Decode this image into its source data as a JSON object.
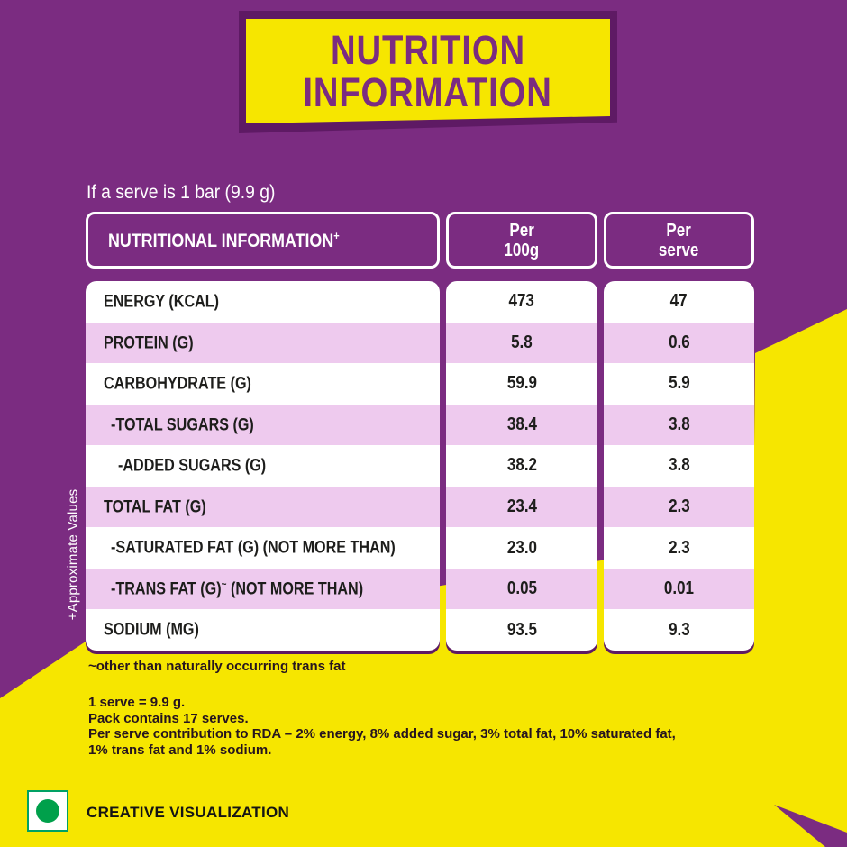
{
  "banner": {
    "line1": "NUTRITION",
    "line2": "INFORMATION"
  },
  "intro": "If a serve is 1 bar (9.9 g)",
  "table": {
    "header": {
      "title": "NUTRITIONAL INFORMATION",
      "title_sup": "+",
      "col1_line1": "Per",
      "col1_line2": "100g",
      "col2_line1": "Per",
      "col2_line2": "serve"
    },
    "rows": [
      {
        "label": "ENERGY (KCAL)",
        "sup": "",
        "suffix": "",
        "per100g": "473",
        "per_serve": "47"
      },
      {
        "label": "PROTEIN (G)",
        "sup": "",
        "suffix": "",
        "per100g": "5.8",
        "per_serve": "0.6"
      },
      {
        "label": "CARBOHYDRATE (G)",
        "sup": "",
        "suffix": "",
        "per100g": "59.9",
        "per_serve": "5.9"
      },
      {
        "label": "-TOTAL SUGARS (G)",
        "sup": "",
        "suffix": "",
        "per100g": "38.4",
        "per_serve": "3.8"
      },
      {
        "label": "-ADDED SUGARS (G)",
        "sup": "",
        "suffix": "",
        "per100g": "38.2",
        "per_serve": "3.8"
      },
      {
        "label": "TOTAL FAT (G)",
        "sup": "",
        "suffix": "",
        "per100g": "23.4",
        "per_serve": "2.3"
      },
      {
        "label": "-SATURATED FAT (G) (NOT MORE THAN)",
        "sup": "",
        "suffix": "",
        "per100g": "23.0",
        "per_serve": "2.3"
      },
      {
        "label": "-TRANS FAT (G)",
        "sup": "~",
        "suffix": " (NOT MORE THAN)",
        "per100g": "0.05",
        "per_serve": "0.01"
      },
      {
        "label": "SODIUM (MG)",
        "sup": "",
        "suffix": "",
        "per100g": "93.5",
        "per_serve": "9.3"
      }
    ],
    "side_note": "+Approximate Values"
  },
  "footnotes": {
    "trans_fat_note": "~other than naturally occurring trans fat",
    "serve_line1": "1 serve = 9.9 g.",
    "serve_line2": "Pack contains 17 serves.",
    "rda_line1": "Per serve contribution to RDA – 2% energy, 8% added sugar, 3% total fat, 10% saturated fat,",
    "rda_line2": "1% trans fat and 1% sodium."
  },
  "footer": {
    "label": "CREATIVE VISUALIZATION"
  },
  "colors": {
    "brand_purple": "#7b2c81",
    "dark_purple": "#5e1a64",
    "banner_yellow": "#f6e600",
    "row_pink": "#eecaee",
    "veg_green": "#00a04b",
    "text_black": "#1d1d1b",
    "text_white": "#ffffff"
  }
}
